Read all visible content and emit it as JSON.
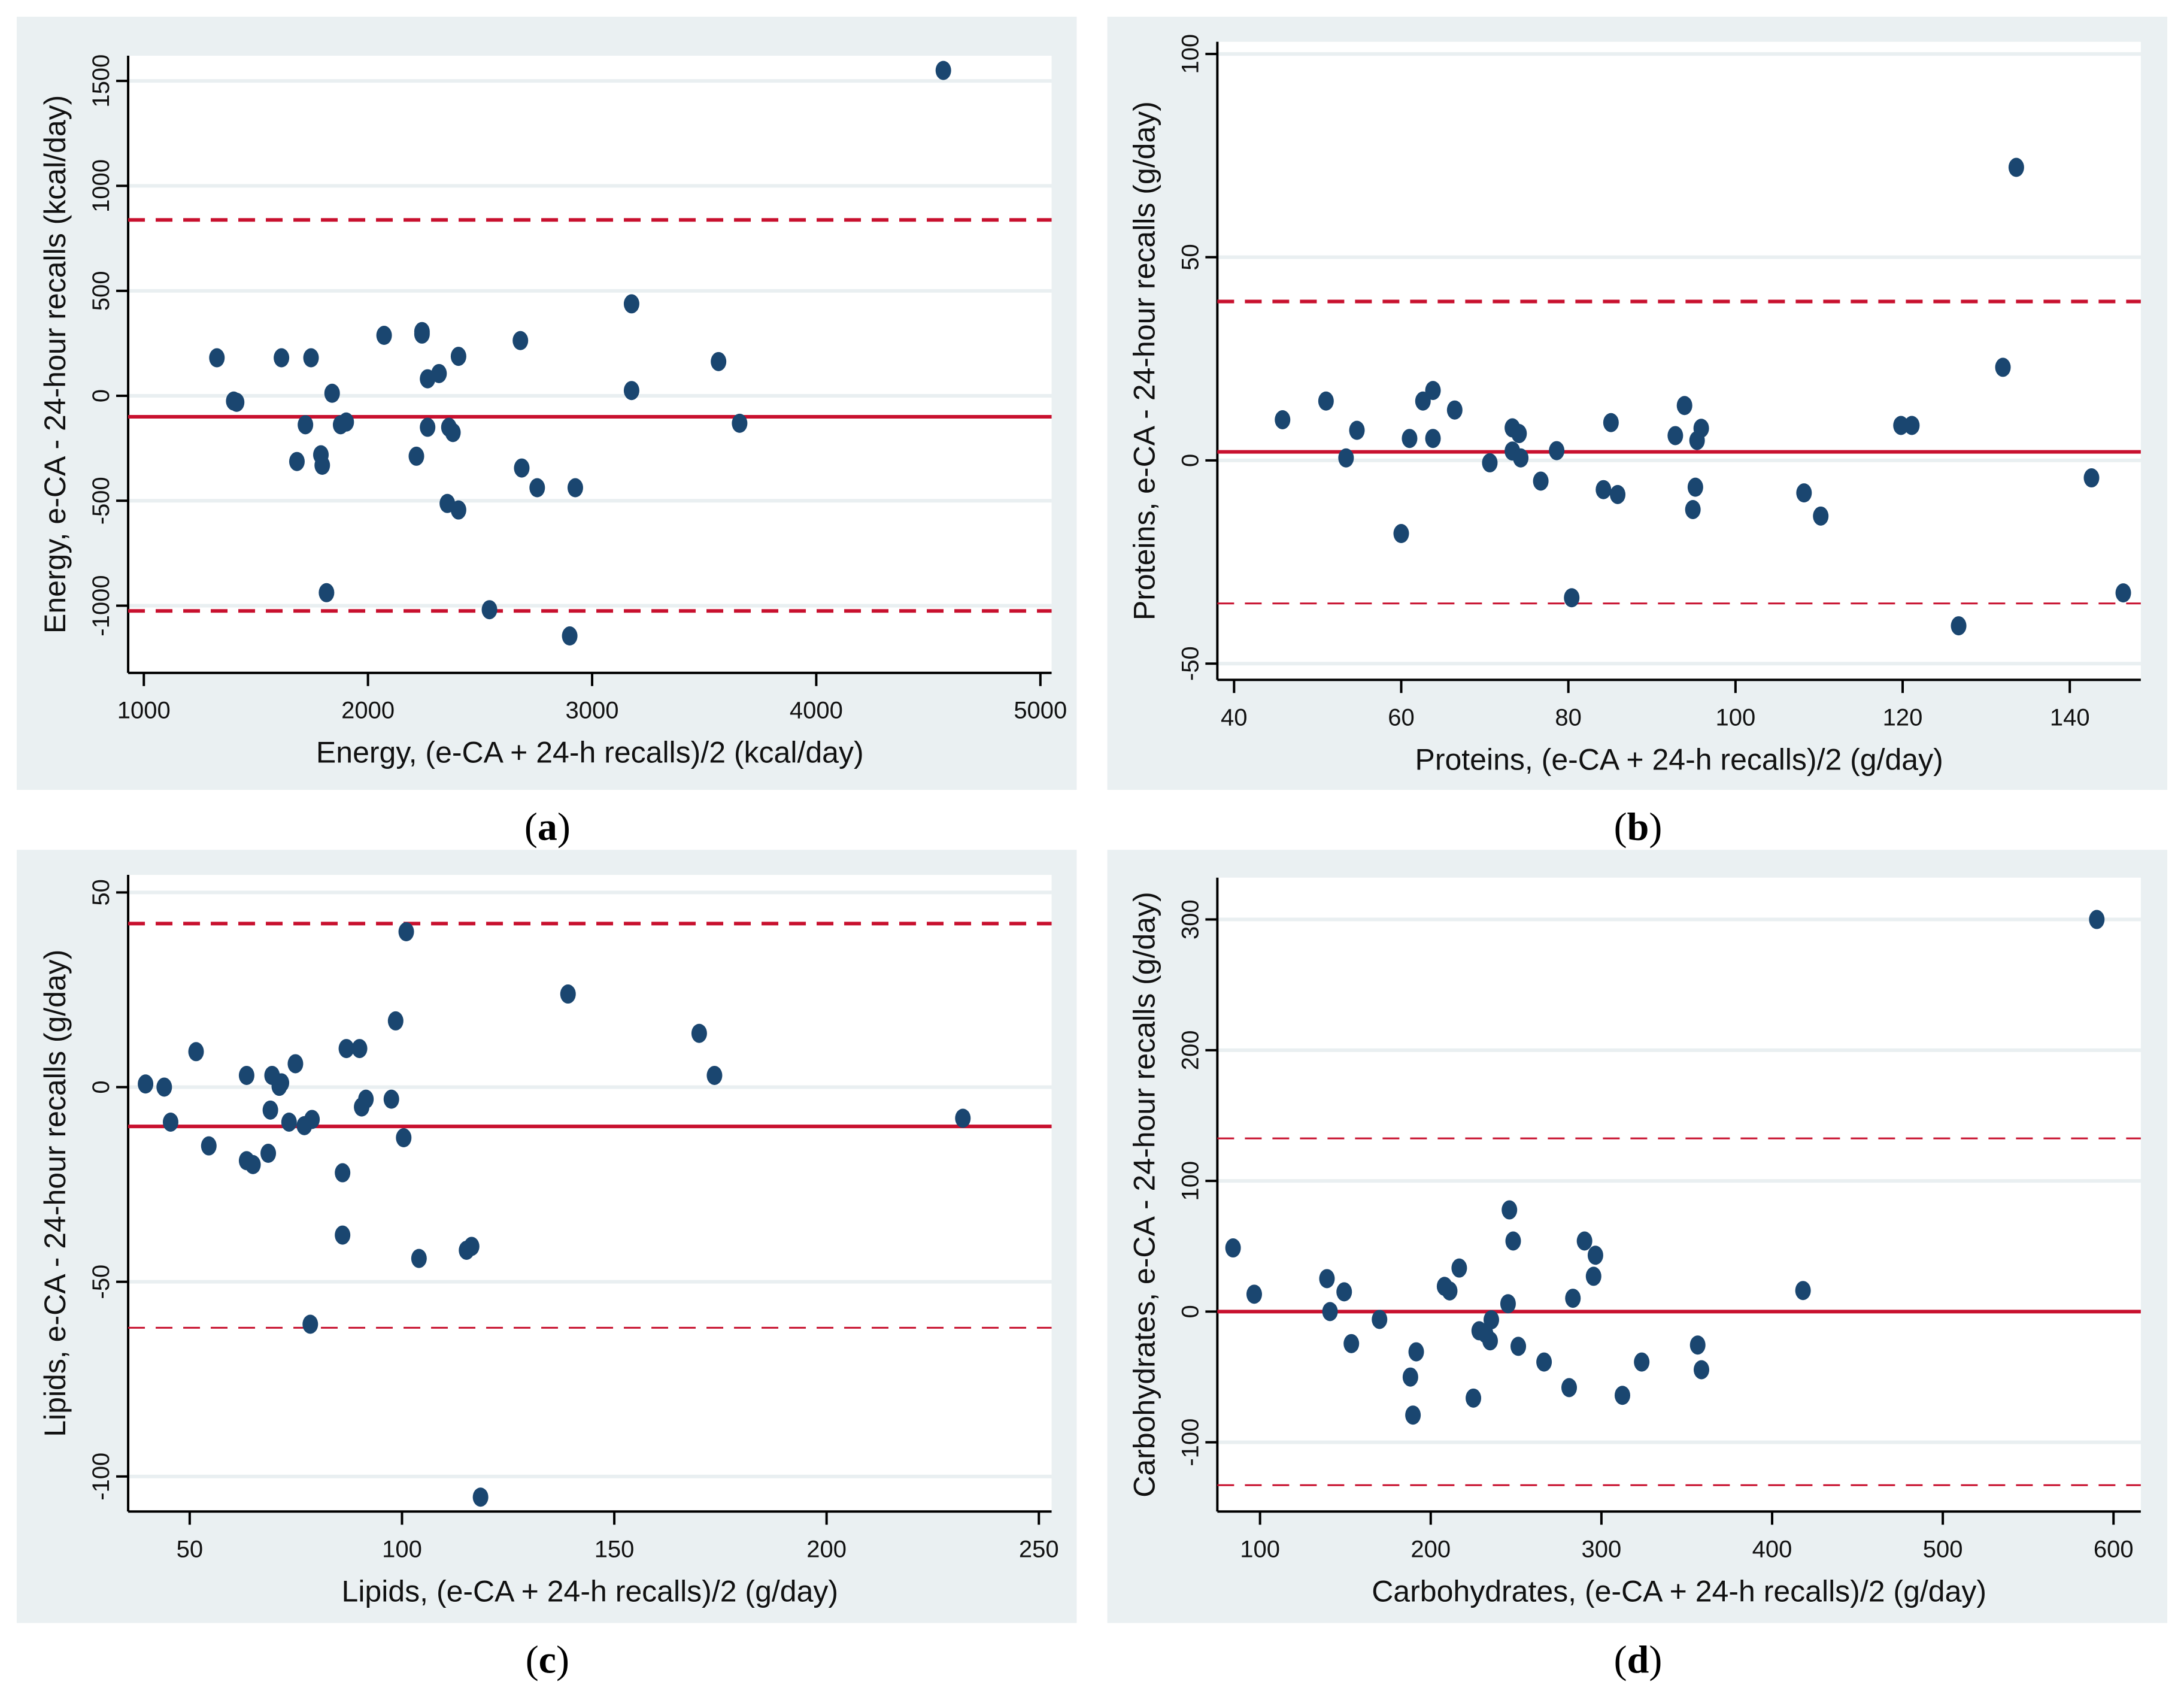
{
  "chart_data": [
    {
      "id": "a",
      "type": "scatter",
      "caption": "a",
      "title": "",
      "xlabel": "Energy, (e-CA + 24-h recalls)/2 (kcal/day)",
      "ylabel": "Energy, e-CA - 24-hour recalls (kcal/day)",
      "xlim": [
        930,
        5050
      ],
      "ylim": [
        -1320,
        1620
      ],
      "xticks": [
        1000,
        2000,
        3000,
        4000,
        5000
      ],
      "yticks": [
        -1000,
        -500,
        0,
        500,
        1000,
        1500
      ],
      "grid": true,
      "reference_lines": {
        "mean": -100,
        "upper_loa": 838,
        "lower_loa": -1025
      },
      "loa_style": "thick",
      "points": [
        [
          1326,
          181
        ],
        [
          1401,
          -25
        ],
        [
          1414,
          -31
        ],
        [
          1614,
          181
        ],
        [
          1746,
          181
        ],
        [
          1721,
          -138
        ],
        [
          1683,
          -313
        ],
        [
          1790,
          -281
        ],
        [
          1796,
          -331
        ],
        [
          1840,
          12
        ],
        [
          1878,
          -138
        ],
        [
          1903,
          -125
        ],
        [
          1815,
          -938
        ],
        [
          2072,
          288
        ],
        [
          2241,
          306
        ],
        [
          2241,
          294
        ],
        [
          2266,
          81
        ],
        [
          2317,
          106
        ],
        [
          2404,
          188
        ],
        [
          2266,
          -150
        ],
        [
          2361,
          -150
        ],
        [
          2379,
          -175
        ],
        [
          2216,
          -288
        ],
        [
          2354,
          -513
        ],
        [
          2404,
          -544
        ],
        [
          2542,
          -1019
        ],
        [
          2680,
          263
        ],
        [
          2686,
          -344
        ],
        [
          2755,
          -438
        ],
        [
          2925,
          -438
        ],
        [
          2900,
          -1144
        ],
        [
          3176,
          438
        ],
        [
          3176,
          25
        ],
        [
          3564,
          163
        ],
        [
          3658,
          -131
        ],
        [
          4567,
          1550
        ]
      ]
    },
    {
      "id": "b",
      "type": "scatter",
      "caption": "b",
      "title": "",
      "xlabel": "Proteins, (e-CA + 24-h recalls)/2 (g/day)",
      "ylabel": "Proteins, e-CA - 24-hour recalls (g/day)",
      "xlim": [
        38,
        148.5
      ],
      "ylim": [
        -54,
        103
      ],
      "xticks": [
        40,
        60,
        80,
        100,
        120,
        140
      ],
      "yticks": [
        -50,
        0,
        50,
        100
      ],
      "grid": true,
      "reference_lines": {
        "mean": 2.1,
        "upper_loa": 39.1,
        "lower_loa": -35.2
      },
      "loa_style": "mixed",
      "points": [
        [
          45.8,
          10
        ],
        [
          51,
          14.6
        ],
        [
          53.4,
          0.6
        ],
        [
          54.7,
          7.4
        ],
        [
          60,
          -18
        ],
        [
          61,
          5.4
        ],
        [
          62.6,
          14.6
        ],
        [
          63.8,
          17.2
        ],
        [
          63.8,
          5.4
        ],
        [
          66.4,
          12.4
        ],
        [
          70.6,
          -0.6
        ],
        [
          73.3,
          8
        ],
        [
          74.1,
          6.6
        ],
        [
          73.3,
          2.3
        ],
        [
          74.3,
          0.6
        ],
        [
          76.7,
          -5.1
        ],
        [
          78.6,
          2.4
        ],
        [
          80.4,
          -33.8
        ],
        [
          84.2,
          -7.2
        ],
        [
          85.1,
          9.3
        ],
        [
          85.9,
          -8.4
        ],
        [
          92.8,
          6.1
        ],
        [
          93.9,
          13.5
        ],
        [
          94.9,
          -12.1
        ],
        [
          95.2,
          -6.6
        ],
        [
          95.4,
          4.9
        ],
        [
          95.9,
          7.9
        ],
        [
          108.2,
          -8
        ],
        [
          110.2,
          -13.7
        ],
        [
          119.8,
          8.6
        ],
        [
          121.1,
          8.6
        ],
        [
          126.7,
          -40.7
        ],
        [
          132,
          22.9
        ],
        [
          133.6,
          72.1
        ],
        [
          142.6,
          -4.3
        ],
        [
          146.4,
          -32.6
        ]
      ]
    },
    {
      "id": "c",
      "type": "scatter",
      "caption": "c",
      "title": "",
      "xlabel": "Lipids, (e-CA + 24-h recalls)/2 (g/day)",
      "ylabel": "Lipids, e-CA - 24-hour recalls (g/day)",
      "xlim": [
        35.5,
        253
      ],
      "ylim": [
        -109,
        54.5
      ],
      "xticks": [
        50,
        100,
        150,
        200,
        250
      ],
      "yticks": [
        -100,
        -50,
        0,
        50
      ],
      "grid": true,
      "reference_lines": {
        "mean": -10.1,
        "upper_loa": 42,
        "lower_loa": -61.8
      },
      "loa_style": "mixed",
      "points": [
        [
          39.6,
          0.8
        ],
        [
          44,
          0
        ],
        [
          45.5,
          -9
        ],
        [
          51.5,
          9.1
        ],
        [
          54.5,
          -15.1
        ],
        [
          63.4,
          3
        ],
        [
          63.4,
          -18.9
        ],
        [
          64.9,
          -19.9
        ],
        [
          68.5,
          -17
        ],
        [
          69,
          -5.9
        ],
        [
          69.4,
          3
        ],
        [
          71.1,
          0.2
        ],
        [
          71.6,
          1.1
        ],
        [
          73.4,
          -9
        ],
        [
          74.9,
          6
        ],
        [
          77,
          -9.9
        ],
        [
          78.8,
          -8.3
        ],
        [
          78.4,
          -60.9
        ],
        [
          86,
          -22
        ],
        [
          86,
          -38
        ],
        [
          86.9,
          9.9
        ],
        [
          90,
          9.9
        ],
        [
          90.5,
          -5.1
        ],
        [
          91.5,
          -3.1
        ],
        [
          97.5,
          -3.1
        ],
        [
          98.5,
          17
        ],
        [
          100.4,
          -13
        ],
        [
          101,
          39.9
        ],
        [
          104,
          -44
        ],
        [
          115.2,
          -41.9
        ],
        [
          116.4,
          -40.9
        ],
        [
          118.5,
          -105.3
        ],
        [
          139.1,
          23.9
        ],
        [
          170,
          13.8
        ],
        [
          173.6,
          3
        ],
        [
          232.1,
          -8
        ]
      ]
    },
    {
      "id": "d",
      "type": "scatter",
      "caption": "d",
      "title": "",
      "xlabel": "Carbohydrates, (e-CA + 24-h recalls)/2 (g/day)",
      "ylabel": "Carbohydrates, e-CA - 24-hour recalls (g/day)",
      "xlim": [
        75,
        616
      ],
      "ylim": [
        -153,
        332
      ],
      "xticks": [
        100,
        200,
        300,
        400,
        500,
        600
      ],
      "yticks": [
        -100,
        0,
        100,
        200,
        300
      ],
      "grid": true,
      "reference_lines": {
        "mean": 0,
        "upper_loa": 132.5,
        "lower_loa": -132.8
      },
      "loa_style": "thin",
      "points": [
        [
          84.2,
          48.7
        ],
        [
          96.6,
          13.3
        ],
        [
          139.2,
          25.2
        ],
        [
          141,
          0
        ],
        [
          149.3,
          15.1
        ],
        [
          153.5,
          -24.5
        ],
        [
          170,
          -6
        ],
        [
          188.1,
          -50.1
        ],
        [
          189.6,
          -79.2
        ],
        [
          191.5,
          -30.8
        ],
        [
          208.1,
          19.3
        ],
        [
          211.1,
          15.8
        ],
        [
          216.7,
          33.3
        ],
        [
          225,
          -66.2
        ],
        [
          228.4,
          -14.7
        ],
        [
          232.1,
          -16.8
        ],
        [
          234.8,
          -22.4
        ],
        [
          235.5,
          -6.3
        ],
        [
          245.3,
          6
        ],
        [
          246.1,
          77.8
        ],
        [
          248.3,
          54
        ],
        [
          251.3,
          -26.6
        ],
        [
          266.4,
          -38.6
        ],
        [
          281.1,
          -58.2
        ],
        [
          283.3,
          10.2
        ],
        [
          290.1,
          54
        ],
        [
          295.4,
          27
        ],
        [
          296.5,
          43.1
        ],
        [
          312.3,
          -64.1
        ],
        [
          323.6,
          -38.6
        ],
        [
          356.4,
          -25.6
        ],
        [
          358.6,
          -44.5
        ],
        [
          418.1,
          16.1
        ],
        [
          590.2,
          300
        ]
      ]
    }
  ],
  "colors": {
    "panel_background": "#eaf0f2",
    "plot_background": "#ffffff",
    "point": "#1a4670",
    "reference_line": "#c8102e",
    "gridline": "#e9eff1"
  }
}
